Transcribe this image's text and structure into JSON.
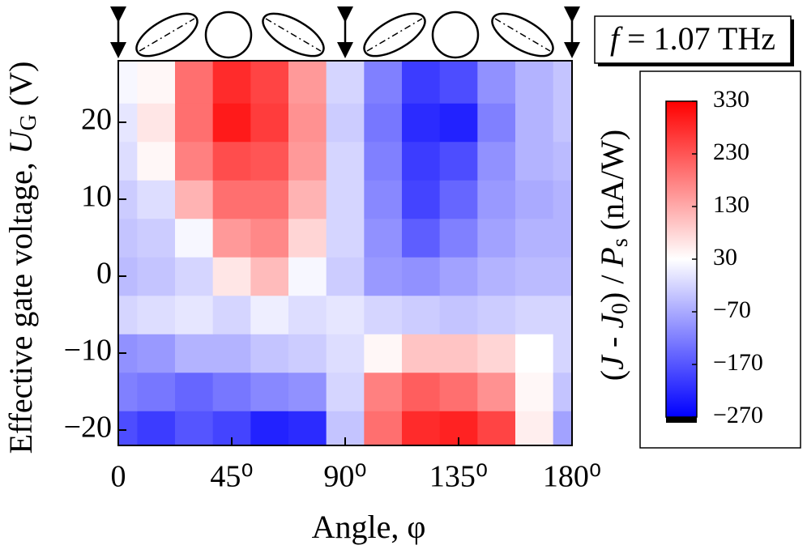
{
  "chart_data": {
    "type": "heatmap",
    "x": [
      0,
      15,
      30,
      45,
      60,
      75,
      90,
      105,
      120,
      135,
      150,
      165,
      180
    ],
    "y": [
      -20,
      -15,
      -10,
      -5,
      0,
      5,
      10,
      15,
      20,
      25
    ],
    "values": [
      [
        -180,
        -200,
        -170,
        -190,
        -230,
        -220,
        -40,
        200,
        280,
        290,
        250,
        50,
        -80
      ],
      [
        -120,
        -130,
        -150,
        -130,
        -110,
        -100,
        -20,
        180,
        220,
        200,
        160,
        40,
        -40
      ],
      [
        -100,
        -90,
        -60,
        -60,
        -40,
        -30,
        -10,
        40,
        100,
        100,
        80,
        30,
        -20
      ],
      [
        -20,
        -10,
        0,
        -20,
        10,
        -10,
        0,
        -20,
        -30,
        -40,
        -30,
        -20,
        -20
      ],
      [
        -50,
        -40,
        -20,
        60,
        110,
        20,
        -30,
        -90,
        -100,
        -80,
        -60,
        -50,
        -50
      ],
      [
        -40,
        -30,
        20,
        150,
        170,
        80,
        -20,
        -100,
        -160,
        -120,
        -80,
        -60,
        -60
      ],
      [
        -30,
        -10,
        120,
        200,
        200,
        120,
        -20,
        -110,
        -190,
        -150,
        -90,
        -70,
        -60
      ],
      [
        -10,
        40,
        180,
        240,
        230,
        150,
        -20,
        -120,
        -200,
        -180,
        -100,
        -60,
        -50
      ],
      [
        0,
        60,
        200,
        300,
        260,
        160,
        -30,
        -130,
        -220,
        -230,
        -120,
        -60,
        -40
      ],
      [
        20,
        40,
        200,
        280,
        250,
        150,
        -20,
        -120,
        -200,
        -180,
        -100,
        -60,
        -40
      ]
    ],
    "xlim": [
      0,
      180
    ],
    "xticks": [
      0,
      {
        "value": 45,
        "label": "45⁰"
      },
      {
        "value": 90,
        "label": "90⁰"
      },
      {
        "value": 135,
        "label": "135⁰"
      },
      {
        "value": 180,
        "label": "180⁰"
      }
    ],
    "ylim": [
      -22,
      28
    ],
    "yticks": [
      {
        "value": -20,
        "label": "−20"
      },
      {
        "value": -10,
        "label": "−10"
      },
      0,
      10,
      20
    ],
    "x_label": "Angle,  φ",
    "y_label": {
      "text": "Effective gate voltage, ",
      "var": "U",
      "sub": "G",
      "unit": " (V)"
    },
    "annotation": {
      "var": "f",
      "text": " = 1.07  THz"
    },
    "colorbar": {
      "lim": [
        -270,
        330
      ],
      "colors": [
        "#0000ff",
        "#ffffff",
        "#ff0000"
      ],
      "center": 30,
      "ticks": [
        {
          "value": -270,
          "label": "−270"
        },
        {
          "value": -170,
          "label": "−170"
        },
        {
          "value": -70,
          "label": "−70"
        },
        30,
        130,
        230,
        330
      ],
      "label": {
        "open": "(",
        "var1": "J",
        "mid": " - ",
        "var2": "J",
        "sub2": "0",
        "close": ") / ",
        "var3": "P",
        "sub3": "s",
        "unit": " (nA/W)"
      }
    }
  }
}
